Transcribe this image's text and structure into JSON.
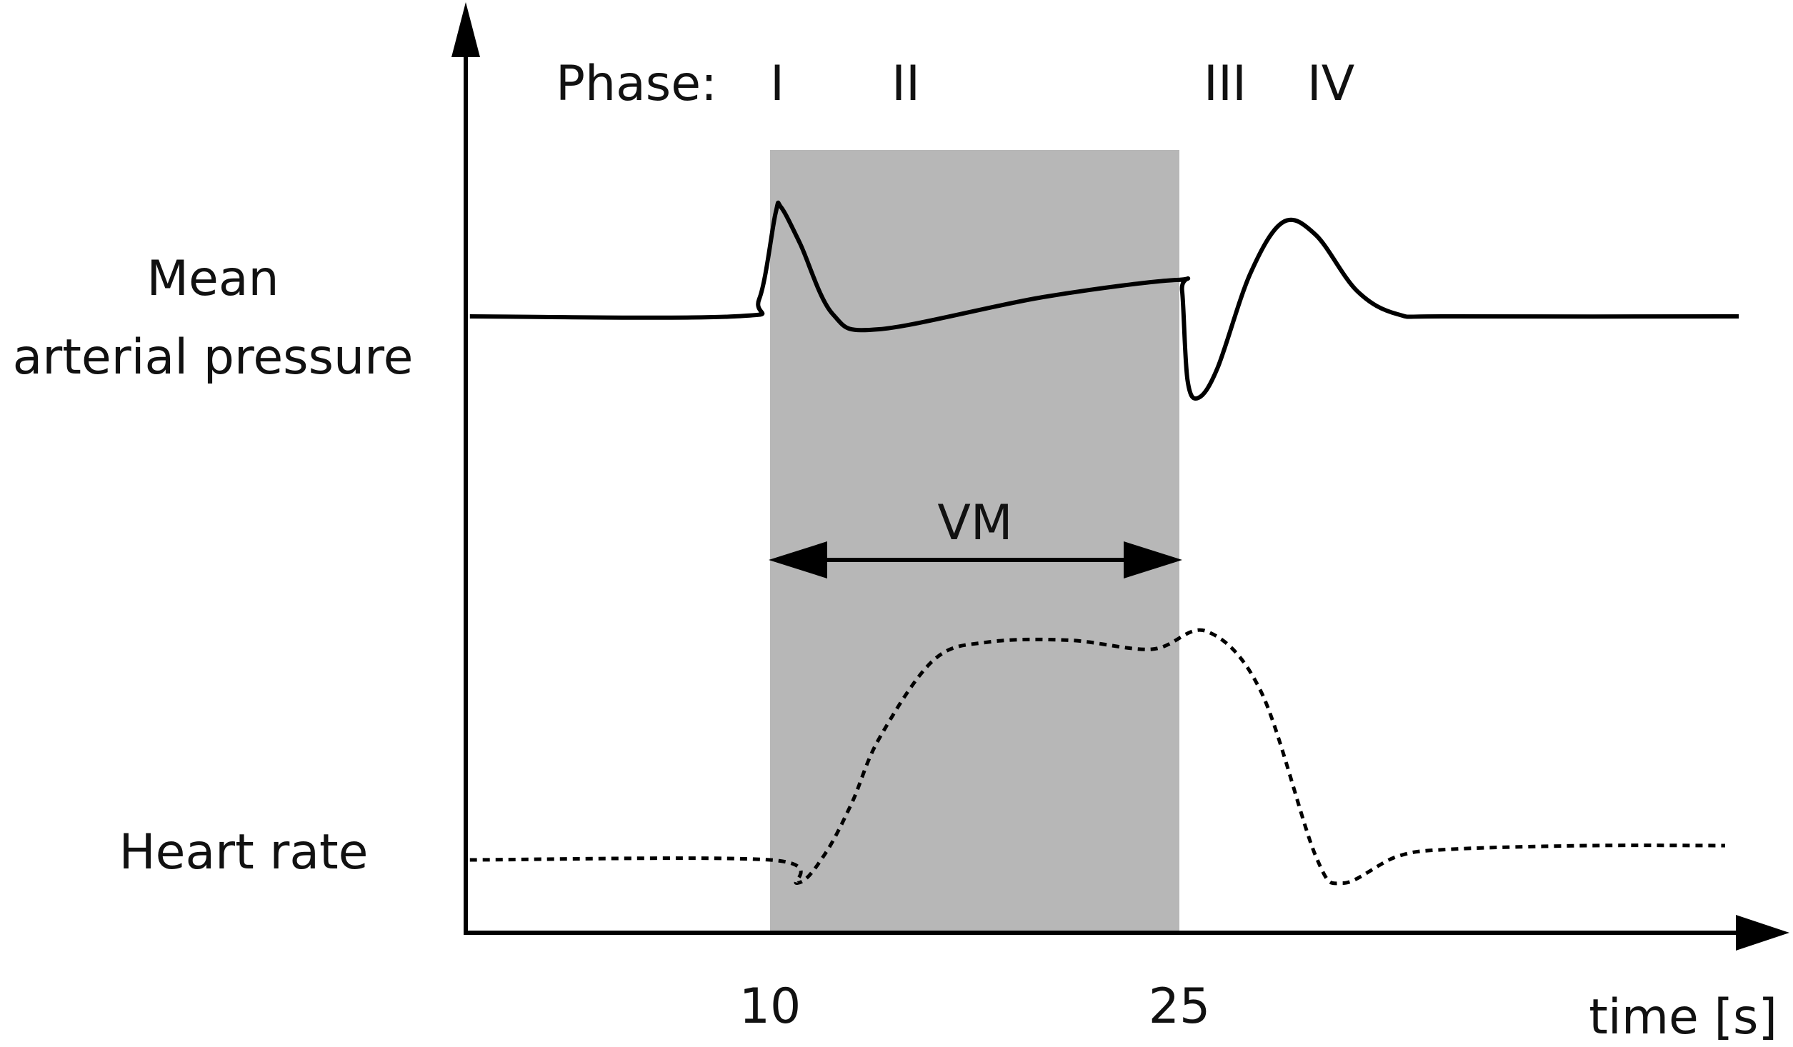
{
  "figure": {
    "phase_prefix": "Phase:",
    "phases": [
      "I",
      "II",
      "III",
      "IV"
    ],
    "y_labels": {
      "pressure_line1": "Mean",
      "pressure_line2": "arterial pressure",
      "heart_rate": "Heart rate"
    },
    "x_label": "time [s]",
    "x_ticks": [
      "10",
      "25"
    ],
    "maneuver_label": "VM",
    "colors": {
      "maneuver_shading": "#b7b7b7",
      "lines": "#000000",
      "text": "#111111"
    }
  },
  "chart_data": {
    "type": "line",
    "xlabel": "time [s]",
    "x_ticks": [
      10,
      25
    ],
    "shaded_region": {
      "label": "VM",
      "x_start": 10,
      "x_end": 25
    },
    "series": [
      {
        "style": "solid",
        "points": [
          [
            -1,
            0
          ],
          [
            8.7,
            0
          ],
          [
            9.6,
            0.4
          ],
          [
            10.2,
            2.4
          ],
          [
            10.4,
            2.55
          ],
          [
            11.1,
            1.7
          ],
          [
            12.3,
            0.05
          ],
          [
            14,
            -0.3
          ],
          [
            20,
            0.45
          ],
          [
            24.9,
            0.85
          ],
          [
            25.1,
            0.6
          ],
          [
            25.3,
            -1.5
          ],
          [
            25.7,
            -1.9
          ],
          [
            26.4,
            -1.2
          ],
          [
            27.6,
            1.0
          ],
          [
            28.8,
            2.2
          ],
          [
            30,
            1.9
          ],
          [
            31.5,
            0.6
          ],
          [
            33,
            0.05
          ],
          [
            35,
            0
          ],
          [
            45.5,
            0
          ]
        ]
      },
      {
        "style": "dotted",
        "points": [
          [
            -1,
            0
          ],
          [
            10,
            0
          ],
          [
            11,
            -0.65
          ],
          [
            12,
            0.15
          ],
          [
            13,
            1.6
          ],
          [
            14,
            3.4
          ],
          [
            16,
            5.6
          ],
          [
            18,
            6.1
          ],
          [
            21,
            6.15
          ],
          [
            24,
            5.9
          ],
          [
            26,
            6.4
          ],
          [
            28,
            4.7
          ],
          [
            30,
            0.1
          ],
          [
            31,
            -0.65
          ],
          [
            33,
            0.1
          ],
          [
            35,
            0.3
          ],
          [
            40,
            0.4
          ],
          [
            45,
            0.4
          ]
        ]
      }
    ]
  }
}
